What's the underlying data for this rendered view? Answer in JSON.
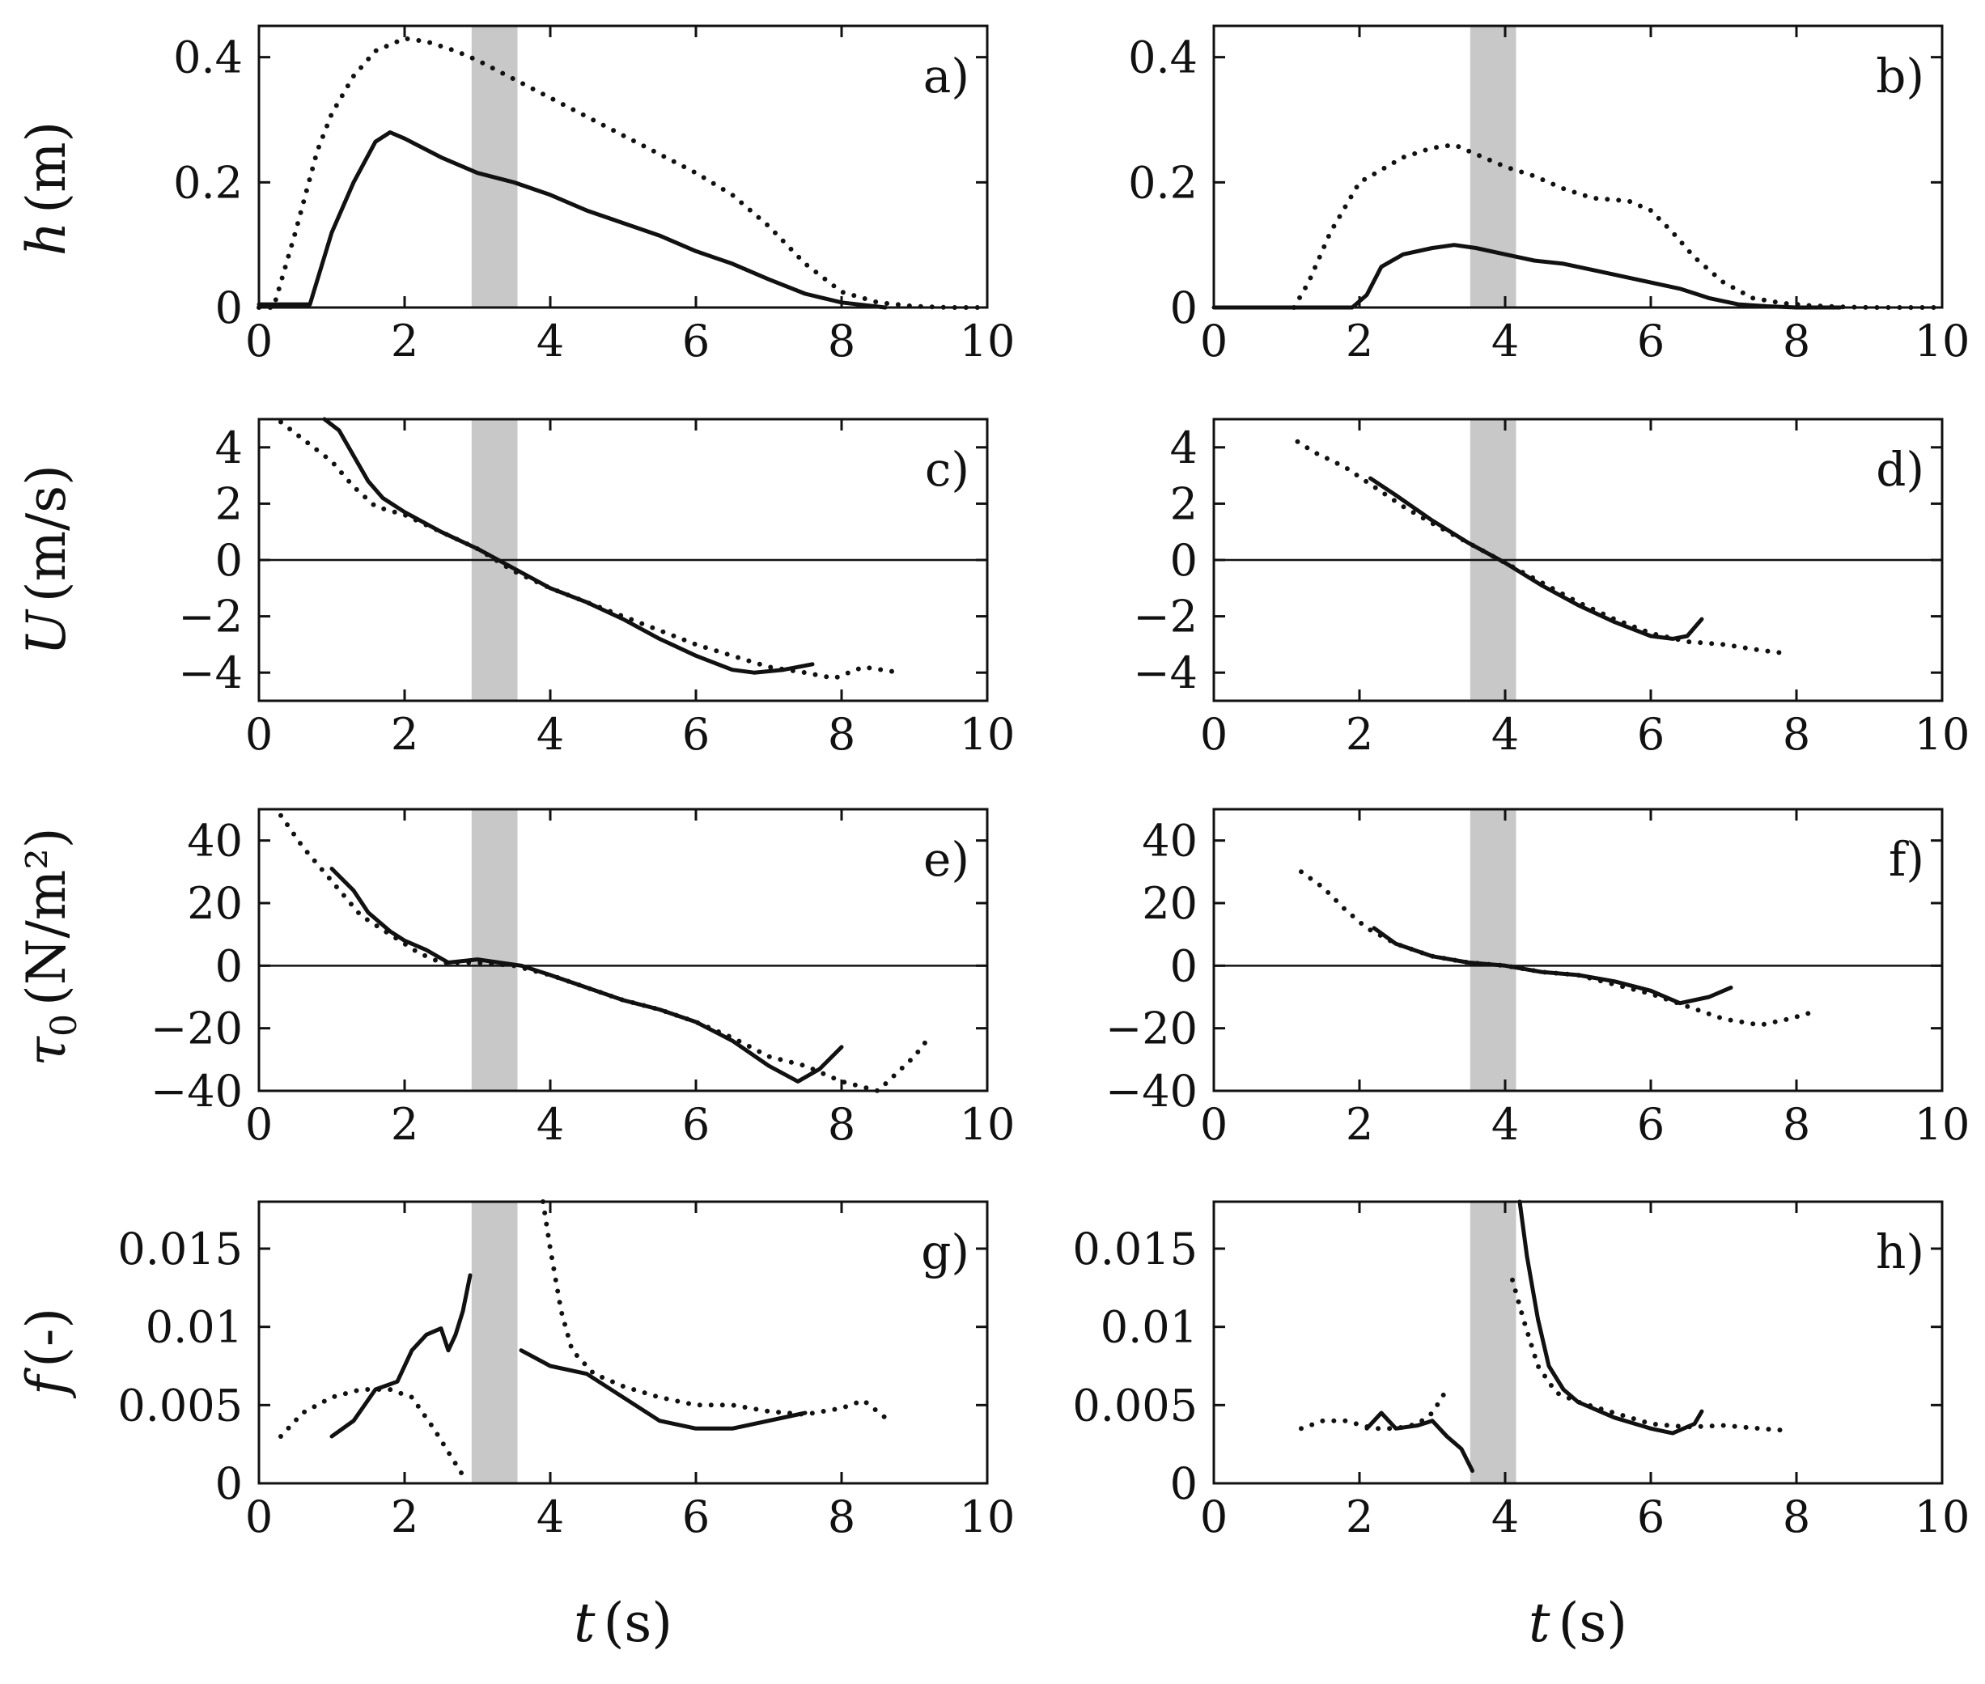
{
  "figure": {
    "xlabel_symbol": "t",
    "xlabel_unit": "(s)",
    "row_ylabels": [
      {
        "symbol": "h",
        "unit": "(m)"
      },
      {
        "symbol": "U",
        "unit": "(m/s)"
      },
      {
        "symbol": "τ",
        "subscript": "0",
        "unit": "(N/m²)"
      },
      {
        "symbol": "f",
        "unit": "(-)"
      }
    ],
    "colors": {
      "solid": "#111111",
      "dotted": "#111111",
      "shade": "#c8c8c8",
      "frame": "#111111"
    }
  },
  "chart_data": [
    {
      "type": "line",
      "panel": "a)",
      "row": 0,
      "col": 0,
      "xlim": [
        0,
        10
      ],
      "ylim": [
        0,
        0.45
      ],
      "xticks": [
        0,
        2,
        4,
        6,
        8,
        10
      ],
      "xtick_labels": [
        "0",
        "2",
        "4",
        "6",
        "8",
        "10"
      ],
      "yticks": [
        0,
        0.2,
        0.4
      ],
      "ytick_labels": [
        "0",
        "0.2",
        "0.4"
      ],
      "shade": [
        2.92,
        3.55
      ],
      "zero_line": false,
      "series": [
        {
          "name": "solid",
          "style": "solid",
          "x": [
            0,
            0.7,
            1.0,
            1.3,
            1.6,
            1.8,
            2.0,
            2.5,
            3.0,
            3.5,
            4.0,
            4.5,
            5.0,
            5.5,
            6.0,
            6.5,
            7.0,
            7.5,
            8.0,
            8.6
          ],
          "y": [
            0.005,
            0.005,
            0.12,
            0.2,
            0.265,
            0.28,
            0.27,
            0.24,
            0.215,
            0.2,
            0.18,
            0.155,
            0.135,
            0.115,
            0.09,
            0.07,
            0.045,
            0.022,
            0.008,
            0.0
          ]
        },
        {
          "name": "dotted",
          "style": "dotted",
          "x": [
            0,
            0.2,
            0.5,
            0.8,
            1.0,
            1.3,
            1.6,
            2.0,
            2.3,
            2.7,
            3.0,
            3.5,
            4.0,
            4.5,
            5.0,
            5.5,
            6.0,
            6.5,
            7.0,
            7.5,
            8.0,
            8.5,
            9.0,
            9.5,
            10.0
          ],
          "y": [
            0.0,
            0.0,
            0.12,
            0.25,
            0.31,
            0.37,
            0.41,
            0.43,
            0.425,
            0.41,
            0.395,
            0.365,
            0.335,
            0.305,
            0.275,
            0.245,
            0.215,
            0.18,
            0.13,
            0.07,
            0.025,
            0.008,
            0.002,
            0.0,
            0.0
          ]
        }
      ]
    },
    {
      "type": "line",
      "panel": "b)",
      "row": 0,
      "col": 1,
      "xlim": [
        0,
        10
      ],
      "ylim": [
        0,
        0.45
      ],
      "xticks": [
        0,
        2,
        4,
        6,
        8,
        10
      ],
      "xtick_labels": [
        "0",
        "2",
        "4",
        "6",
        "8",
        "10"
      ],
      "yticks": [
        0,
        0.2,
        0.4
      ],
      "ytick_labels": [
        "0",
        "0.2",
        "0.4"
      ],
      "shade": [
        3.52,
        4.15
      ],
      "zero_line": false,
      "series": [
        {
          "name": "solid",
          "style": "solid",
          "x": [
            0,
            1.9,
            2.1,
            2.3,
            2.6,
            3.0,
            3.3,
            3.6,
            4.0,
            4.4,
            4.8,
            5.2,
            5.6,
            6.0,
            6.4,
            6.8,
            7.2,
            7.6,
            8.0,
            8.6
          ],
          "y": [
            0.0,
            0.0,
            0.02,
            0.065,
            0.085,
            0.095,
            0.1,
            0.095,
            0.085,
            0.075,
            0.07,
            0.06,
            0.05,
            0.04,
            0.03,
            0.015,
            0.005,
            0.002,
            0.0,
            0.0
          ]
        },
        {
          "name": "dotted",
          "style": "dotted",
          "x": [
            1.1,
            1.3,
            1.6,
            2.0,
            2.3,
            2.6,
            3.0,
            3.3,
            3.6,
            4.0,
            4.4,
            4.8,
            5.2,
            5.7,
            6.0,
            6.3,
            6.6,
            7.0,
            7.4,
            7.8,
            8.2,
            8.6,
            9.0,
            9.5,
            10.0
          ],
          "y": [
            0.0,
            0.04,
            0.12,
            0.2,
            0.22,
            0.24,
            0.255,
            0.26,
            0.245,
            0.225,
            0.21,
            0.19,
            0.175,
            0.17,
            0.155,
            0.12,
            0.08,
            0.04,
            0.015,
            0.007,
            0.003,
            0.001,
            0.0,
            0.0,
            0.0
          ]
        }
      ]
    },
    {
      "type": "line",
      "panel": "c)",
      "row": 1,
      "col": 0,
      "xlim": [
        0,
        10
      ],
      "ylim": [
        -5,
        5
      ],
      "xticks": [
        0,
        2,
        4,
        6,
        8,
        10
      ],
      "xtick_labels": [
        "0",
        "2",
        "4",
        "6",
        "8",
        "10"
      ],
      "yticks": [
        -4,
        -2,
        0,
        2,
        4
      ],
      "ytick_labels": [
        "−4",
        "−2",
        "0",
        "2",
        "4"
      ],
      "shade": [
        2.92,
        3.55
      ],
      "zero_line": true,
      "series": [
        {
          "name": "solid",
          "style": "solid",
          "x": [
            0.9,
            1.1,
            1.3,
            1.5,
            1.7,
            2.0,
            2.5,
            3.0,
            3.5,
            4.0,
            4.5,
            5.0,
            5.5,
            6.0,
            6.5,
            6.8,
            7.2,
            7.6
          ],
          "y": [
            5.0,
            4.6,
            3.7,
            2.8,
            2.2,
            1.7,
            1.0,
            0.4,
            -0.3,
            -1.0,
            -1.5,
            -2.1,
            -2.8,
            -3.4,
            -3.9,
            -4.0,
            -3.9,
            -3.7
          ]
        },
        {
          "name": "dotted",
          "style": "dotted",
          "x": [
            0.3,
            0.6,
            1.0,
            1.3,
            1.6,
            2.0,
            2.5,
            3.0,
            3.5,
            4.0,
            4.5,
            5.0,
            5.5,
            6.0,
            6.5,
            7.0,
            7.5,
            7.9,
            8.3,
            8.8
          ],
          "y": [
            4.9,
            4.3,
            3.5,
            2.6,
            1.9,
            1.6,
            1.0,
            0.4,
            -0.4,
            -1.0,
            -1.5,
            -2.0,
            -2.5,
            -3.0,
            -3.4,
            -3.8,
            -4.0,
            -4.2,
            -3.8,
            -4.0
          ]
        }
      ]
    },
    {
      "type": "line",
      "panel": "d)",
      "row": 1,
      "col": 1,
      "xlim": [
        0,
        10
      ],
      "ylim": [
        -5,
        5
      ],
      "xticks": [
        0,
        2,
        4,
        6,
        8,
        10
      ],
      "xtick_labels": [
        "0",
        "2",
        "4",
        "6",
        "8",
        "10"
      ],
      "yticks": [
        -4,
        -2,
        0,
        2,
        4
      ],
      "ytick_labels": [
        "−4",
        "−2",
        "0",
        "2",
        "4"
      ],
      "shade": [
        3.52,
        4.15
      ],
      "zero_line": true,
      "series": [
        {
          "name": "solid",
          "style": "solid",
          "x": [
            2.15,
            2.5,
            3.0,
            3.5,
            4.0,
            4.5,
            5.0,
            5.5,
            6.0,
            6.3,
            6.5,
            6.7
          ],
          "y": [
            2.9,
            2.3,
            1.4,
            0.6,
            -0.1,
            -0.9,
            -1.6,
            -2.2,
            -2.7,
            -2.8,
            -2.7,
            -2.1
          ]
        },
        {
          "name": "dotted",
          "style": "dotted",
          "x": [
            1.15,
            1.4,
            1.8,
            2.2,
            2.6,
            3.0,
            3.5,
            4.0,
            4.5,
            5.0,
            5.5,
            6.0,
            6.5,
            7.0,
            7.5,
            7.8
          ],
          "y": [
            4.2,
            3.8,
            3.3,
            2.6,
            1.9,
            1.3,
            0.6,
            -0.1,
            -0.8,
            -1.5,
            -2.1,
            -2.6,
            -2.9,
            -3.0,
            -3.2,
            -3.3
          ]
        }
      ]
    },
    {
      "type": "line",
      "panel": "e)",
      "row": 2,
      "col": 0,
      "xlim": [
        0,
        10
      ],
      "ylim": [
        -40,
        50
      ],
      "xticks": [
        0,
        2,
        4,
        6,
        8,
        10
      ],
      "xtick_labels": [
        "0",
        "2",
        "4",
        "6",
        "8",
        "10"
      ],
      "yticks": [
        -40,
        -20,
        0,
        20,
        40
      ],
      "ytick_labels": [
        "−40",
        "−20",
        "0",
        "20",
        "40"
      ],
      "shade": [
        2.92,
        3.55
      ],
      "zero_line": true,
      "series": [
        {
          "name": "solid",
          "style": "solid",
          "x": [
            1.0,
            1.3,
            1.5,
            1.8,
            2.0,
            2.3,
            2.6,
            3.0,
            3.3,
            3.6,
            4.0,
            4.5,
            5.0,
            5.5,
            6.0,
            6.5,
            7.0,
            7.4,
            7.7,
            8.0
          ],
          "y": [
            31,
            24,
            17,
            11,
            8,
            5,
            1,
            2,
            1,
            0,
            -3,
            -7,
            -11,
            -14,
            -18,
            -24,
            -32,
            -37,
            -33,
            -26
          ]
        },
        {
          "name": "dotted",
          "style": "dotted",
          "x": [
            0.3,
            0.6,
            1.0,
            1.4,
            1.8,
            2.2,
            2.5,
            3.0,
            3.5,
            4.0,
            4.5,
            5.0,
            5.5,
            6.0,
            6.5,
            7.0,
            7.5,
            8.0,
            8.5,
            9.0,
            9.2
          ],
          "y": [
            48,
            38,
            27,
            16,
            10,
            4,
            1,
            1,
            0,
            -3,
            -7,
            -11,
            -14,
            -18,
            -23,
            -29,
            -32,
            -37,
            -40,
            -29,
            -23
          ]
        }
      ]
    },
    {
      "type": "line",
      "panel": "f)",
      "row": 2,
      "col": 1,
      "xlim": [
        0,
        10
      ],
      "ylim": [
        -40,
        50
      ],
      "xticks": [
        0,
        2,
        4,
        6,
        8,
        10
      ],
      "xtick_labels": [
        "0",
        "2",
        "4",
        "6",
        "8",
        "10"
      ],
      "yticks": [
        -40,
        -20,
        0,
        20,
        40
      ],
      "ytick_labels": [
        "−40",
        "−20",
        "0",
        "20",
        "40"
      ],
      "shade": [
        3.52,
        4.15
      ],
      "zero_line": true,
      "series": [
        {
          "name": "solid",
          "style": "solid",
          "x": [
            2.2,
            2.5,
            3.0,
            3.5,
            4.0,
            4.5,
            5.0,
            5.5,
            6.0,
            6.4,
            6.8,
            7.1
          ],
          "y": [
            12,
            7,
            3,
            1,
            0,
            -2,
            -3,
            -5,
            -8,
            -12,
            -10,
            -7
          ]
        },
        {
          "name": "dotted",
          "style": "dotted",
          "x": [
            1.2,
            1.5,
            1.8,
            2.1,
            2.5,
            3.0,
            3.5,
            4.0,
            4.5,
            5.0,
            5.5,
            6.0,
            6.5,
            7.0,
            7.5,
            7.9,
            8.2
          ],
          "y": [
            30,
            25,
            18,
            12,
            7,
            3,
            1,
            0,
            -2,
            -3,
            -6,
            -9,
            -13,
            -17,
            -19,
            -17,
            -15
          ]
        }
      ]
    },
    {
      "type": "line",
      "panel": "g)",
      "row": 3,
      "col": 0,
      "xlim": [
        0,
        10
      ],
      "ylim": [
        0,
        0.018
      ],
      "xticks": [
        0,
        2,
        4,
        6,
        8,
        10
      ],
      "xtick_labels": [
        "0",
        "2",
        "4",
        "6",
        "8",
        "10"
      ],
      "yticks": [
        0,
        0.005,
        0.01,
        0.015
      ],
      "ytick_labels": [
        "0",
        "0.005",
        "0.01",
        "0.015"
      ],
      "shade": [
        2.92,
        3.55
      ],
      "zero_line": false,
      "series": [
        {
          "name": "solid-1",
          "style": "solid",
          "x": [
            1.0,
            1.3,
            1.6,
            1.9,
            2.1,
            2.3,
            2.5,
            2.6,
            2.7,
            2.8,
            2.9
          ],
          "y": [
            0.003,
            0.004,
            0.006,
            0.0065,
            0.0085,
            0.0095,
            0.0099,
            0.0085,
            0.0095,
            0.011,
            0.0133
          ]
        },
        {
          "name": "solid-2",
          "style": "solid",
          "x": [
            3.6,
            4.0,
            4.5,
            5.0,
            5.5,
            6.0,
            6.5,
            7.0,
            7.5
          ],
          "y": [
            0.0085,
            0.0075,
            0.007,
            0.0055,
            0.004,
            0.0035,
            0.0035,
            0.004,
            0.0045
          ]
        },
        {
          "name": "dotted-1",
          "style": "dotted",
          "x": [
            0.3,
            0.6,
            1.0,
            1.4,
            1.8,
            2.1,
            2.4,
            2.6,
            2.8
          ],
          "y": [
            0.003,
            0.0045,
            0.0055,
            0.006,
            0.006,
            0.0055,
            0.0035,
            0.002,
            0.0005
          ]
        },
        {
          "name": "dotted-2",
          "style": "dotted",
          "x": [
            3.9,
            4.0,
            4.15,
            4.3,
            4.6,
            5.0,
            5.5,
            6.0,
            6.5,
            7.0,
            7.5,
            8.0,
            8.3,
            8.6
          ],
          "y": [
            0.018,
            0.015,
            0.011,
            0.0085,
            0.007,
            0.0062,
            0.0055,
            0.005,
            0.005,
            0.0046,
            0.0044,
            0.0048,
            0.0053,
            0.0042
          ]
        }
      ]
    },
    {
      "type": "line",
      "panel": "h)",
      "row": 3,
      "col": 1,
      "xlim": [
        0,
        10
      ],
      "ylim": [
        0,
        0.018
      ],
      "xticks": [
        0,
        2,
        4,
        6,
        8,
        10
      ],
      "xtick_labels": [
        "0",
        "2",
        "4",
        "6",
        "8",
        "10"
      ],
      "yticks": [
        0,
        0.005,
        0.01,
        0.015
      ],
      "ytick_labels": [
        "0",
        "0.005",
        "0.01",
        "0.015"
      ],
      "shade": [
        3.52,
        4.15
      ],
      "zero_line": false,
      "series": [
        {
          "name": "solid-1",
          "style": "solid",
          "x": [
            2.1,
            2.3,
            2.5,
            2.8,
            3.0,
            3.2,
            3.4,
            3.55
          ],
          "y": [
            0.0035,
            0.0045,
            0.0035,
            0.0037,
            0.004,
            0.003,
            0.0022,
            0.0008
          ]
        },
        {
          "name": "solid-2",
          "style": "solid",
          "x": [
            4.2,
            4.3,
            4.45,
            4.6,
            4.8,
            5.0,
            5.5,
            6.0,
            6.3,
            6.6,
            6.7
          ],
          "y": [
            0.018,
            0.0145,
            0.0105,
            0.0075,
            0.006,
            0.0052,
            0.0042,
            0.0035,
            0.0032,
            0.0038,
            0.0046
          ]
        },
        {
          "name": "dotted-1",
          "style": "dotted",
          "x": [
            1.2,
            1.5,
            1.8,
            2.2,
            2.5,
            2.8,
            3.0,
            3.2
          ],
          "y": [
            0.0035,
            0.004,
            0.004,
            0.0035,
            0.0035,
            0.0038,
            0.0045,
            0.006
          ]
        },
        {
          "name": "dotted-2",
          "style": "dotted",
          "x": [
            4.1,
            4.25,
            4.45,
            4.7,
            5.0,
            5.5,
            6.0,
            6.5,
            7.0,
            7.5,
            7.8
          ],
          "y": [
            0.013,
            0.0105,
            0.0075,
            0.0058,
            0.0052,
            0.0045,
            0.0038,
            0.0036,
            0.0037,
            0.0035,
            0.0034
          ]
        }
      ]
    }
  ]
}
